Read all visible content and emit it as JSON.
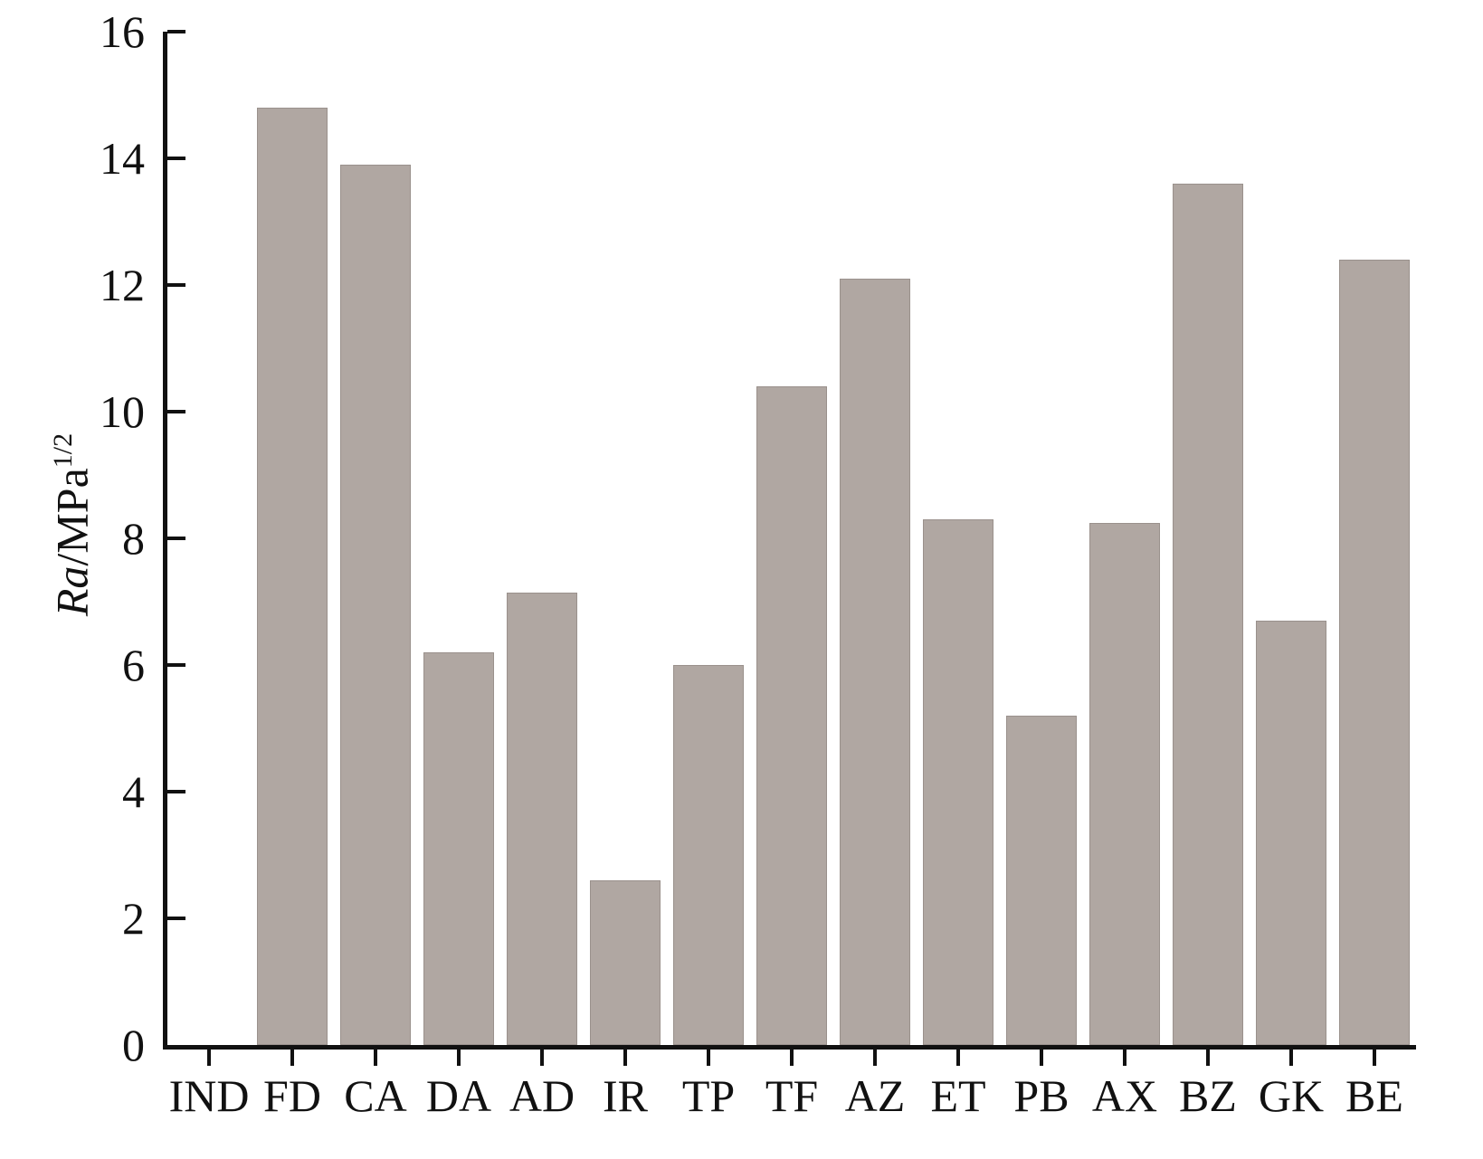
{
  "chart_data": {
    "type": "bar",
    "categories": [
      "IND",
      "FD",
      "CA",
      "DA",
      "AD",
      "IR",
      "TP",
      "TF",
      "AZ",
      "ET",
      "PB",
      "AX",
      "BZ",
      "GK",
      "BE"
    ],
    "values": [
      0,
      14.8,
      13.9,
      6.2,
      7.15,
      2.6,
      6.0,
      10.4,
      12.1,
      8.3,
      5.2,
      8.25,
      13.6,
      6.7,
      12.4
    ],
    "title": "",
    "xlabel": "",
    "ylabel": "Ra/MPa^(1/2)",
    "ylabel_parts": {
      "italic": "Ra",
      "unit": "/MPa",
      "sup": "1/2"
    },
    "ylim": [
      0,
      16
    ],
    "yticks": [
      0,
      2,
      4,
      6,
      8,
      10,
      12,
      14,
      16
    ],
    "grid": false,
    "legend": null,
    "bar_color": "#b0a7a2",
    "axis_color": "#111111"
  }
}
